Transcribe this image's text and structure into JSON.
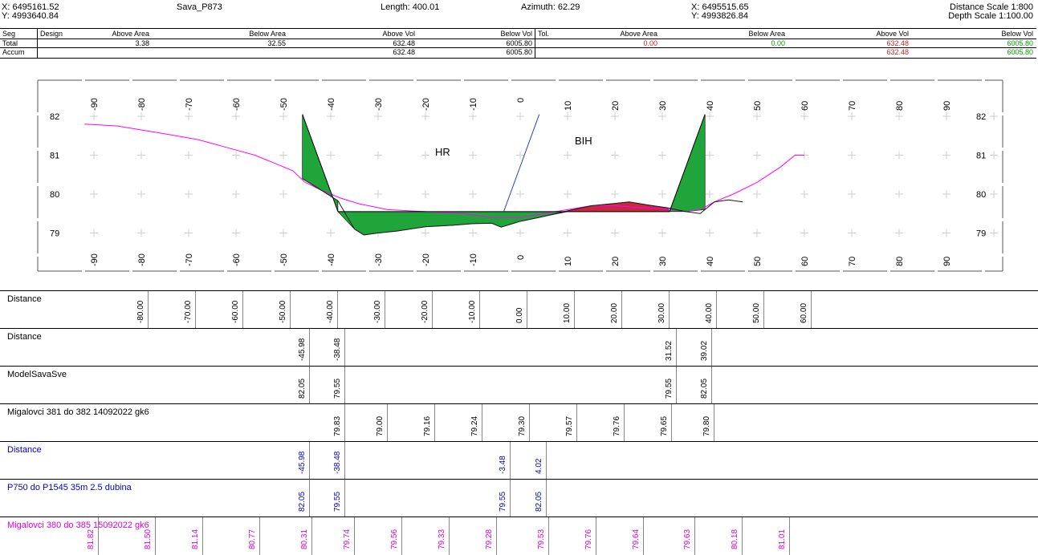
{
  "header": {
    "start_x": "X: 6495161.52",
    "start_y": "Y: 4993640.84",
    "title": "Sava_P873",
    "length": "Length: 400.01",
    "azimuth": "Azimuth: 62.29",
    "end_x": "X: 6495515.65",
    "end_y": "Y: 4993826.84",
    "distance_scale": "Distance Scale 1:800",
    "depth_scale": "Depth Scale 1:100.00"
  },
  "volume_table": {
    "columns": [
      "Seg",
      "Design",
      "Above Area",
      "Below Area",
      "Above Vol",
      "Below Vol",
      "Tol.",
      "Above Area",
      "Below Area",
      "Above Vol",
      "Below Vol"
    ],
    "rows": [
      {
        "label": "Total",
        "values": [
          "3.38",
          "32.55",
          "632.48",
          "6005.80",
          "0.00",
          "0.00",
          "632.48",
          "6005.80"
        ]
      },
      {
        "label": "Accum",
        "values": [
          "",
          "",
          "632.48",
          "6005.80",
          "",
          "",
          "632.48",
          "6005.80"
        ]
      }
    ]
  },
  "colors": {
    "cut_fill": "#1fa53a",
    "fill_red": "#c8283c",
    "terrain_line": "#ff00ff",
    "design_line": "#3040c0",
    "blue_text": "#0000c8",
    "magenta_text": "#e000e0",
    "green_text": "#00a000",
    "red_text": "#d02020"
  },
  "profile": {
    "x_ticks": [
      "-90",
      "-80",
      "-70",
      "-60",
      "-50",
      "-40",
      "-30",
      "-20",
      "-10",
      "0",
      "10",
      "20",
      "30",
      "40",
      "50",
      "60",
      "70",
      "80",
      "90"
    ],
    "y_ticks": [
      "82",
      "81",
      "80",
      "79"
    ],
    "label_hr": "HR",
    "label_bih": "BIH"
  },
  "bands": [
    {
      "title": "Distance",
      "color": "black",
      "values": [
        {
          "x": -80,
          "text": "-80.00"
        },
        {
          "x": -70,
          "text": "-70.00"
        },
        {
          "x": -60,
          "text": "-60.00"
        },
        {
          "x": -50,
          "text": "-50.00"
        },
        {
          "x": -40,
          "text": "-40.00"
        },
        {
          "x": -30,
          "text": "-30.00"
        },
        {
          "x": -20,
          "text": "-20.00"
        },
        {
          "x": -10,
          "text": "-10.00"
        },
        {
          "x": 0,
          "text": "0.00"
        },
        {
          "x": 10,
          "text": "10.00"
        },
        {
          "x": 20,
          "text": "20.00"
        },
        {
          "x": 30,
          "text": "30.00"
        },
        {
          "x": 40,
          "text": "40.00"
        },
        {
          "x": 50,
          "text": "50.00"
        },
        {
          "x": 60,
          "text": "60.00"
        }
      ]
    },
    {
      "title": "Distance",
      "color": "black",
      "values": [
        {
          "x": -45.98,
          "text": "-45.98"
        },
        {
          "x": -38.48,
          "text": "-38.48"
        },
        {
          "x": 31.52,
          "text": "31.52"
        },
        {
          "x": 39.02,
          "text": "39.02"
        }
      ]
    },
    {
      "title": "ModelSavaSve",
      "color": "black",
      "values": [
        {
          "x": -45.98,
          "text": "82.05"
        },
        {
          "x": -38.48,
          "text": "79.55"
        },
        {
          "x": 31.52,
          "text": "79.55"
        },
        {
          "x": 39.02,
          "text": "82.05"
        }
      ]
    },
    {
      "title": "Migalovci 381 do 382 14092022 gk6",
      "color": "black",
      "values": [
        {
          "x": -38.5,
          "text": "79.83"
        },
        {
          "x": -29.5,
          "text": "79.00"
        },
        {
          "x": -19.5,
          "text": "79.16"
        },
        {
          "x": -9.5,
          "text": "79.24"
        },
        {
          "x": 0.5,
          "text": "79.30"
        },
        {
          "x": 10.5,
          "text": "79.57"
        },
        {
          "x": 20.5,
          "text": "79.76"
        },
        {
          "x": 30.5,
          "text": "79.65"
        },
        {
          "x": 39.5,
          "text": "79.80"
        }
      ]
    },
    {
      "title": "Distance",
      "color": "blue",
      "values": [
        {
          "x": -45.98,
          "text": "-45.98"
        },
        {
          "x": -38.48,
          "text": "-38.48"
        },
        {
          "x": -3.48,
          "text": "-3.48"
        },
        {
          "x": 4.02,
          "text": "4.02"
        }
      ]
    },
    {
      "title": "P750 do P1545 35m 2.5 dubina",
      "color": "blue",
      "values": [
        {
          "x": -45.98,
          "text": "82.05"
        },
        {
          "x": -38.48,
          "text": "79.55"
        },
        {
          "x": -3.48,
          "text": "79.55"
        },
        {
          "x": 4.02,
          "text": "82.05"
        }
      ]
    },
    {
      "title": "Migalovci 380 do 385 15092022 gk6",
      "color": "magenta",
      "values": [
        {
          "x": -90.5,
          "text": "81.82"
        },
        {
          "x": -78.5,
          "text": "81.50"
        },
        {
          "x": -68.5,
          "text": "81.14"
        },
        {
          "x": -56.5,
          "text": "80.77"
        },
        {
          "x": -45.5,
          "text": "80.31"
        },
        {
          "x": -36.5,
          "text": "79.74"
        },
        {
          "x": -26.5,
          "text": "79.56"
        },
        {
          "x": -16.5,
          "text": "79.33"
        },
        {
          "x": -6.5,
          "text": "79.28"
        },
        {
          "x": 4.5,
          "text": "79.53"
        },
        {
          "x": 14.5,
          "text": "79.76"
        },
        {
          "x": 24.5,
          "text": "79.64"
        },
        {
          "x": 35.5,
          "text": "79.63"
        },
        {
          "x": 45.5,
          "text": "80.18"
        },
        {
          "x": 55.5,
          "text": "81.01"
        }
      ]
    }
  ],
  "chart_data": {
    "type": "line",
    "title": "Sava_P873",
    "xlim": [
      -100,
      100
    ],
    "ylim": [
      78.5,
      82.5
    ],
    "x_ticks": [
      -90,
      -80,
      -70,
      -60,
      -50,
      -40,
      -30,
      -20,
      -10,
      0,
      10,
      20,
      30,
      40,
      50,
      60,
      70,
      80,
      90
    ],
    "y_ticks": [
      79,
      80,
      81,
      82
    ],
    "series": [
      {
        "name": "Migalovci 380 do 385 15092022 gk6",
        "x": [
          -92,
          -85,
          -80,
          -75,
          -68,
          -62,
          -56,
          -52,
          -48,
          -45.5,
          -42,
          -38,
          -34,
          -28,
          -20,
          -12,
          -6,
          0,
          5,
          10,
          15,
          20,
          26,
          31,
          35,
          38,
          41,
          45,
          50,
          55,
          58,
          60
        ],
        "y": [
          81.8,
          81.75,
          81.65,
          81.55,
          81.4,
          81.2,
          81.0,
          80.8,
          80.6,
          80.31,
          80.1,
          79.9,
          79.75,
          79.6,
          79.55,
          79.5,
          79.4,
          79.4,
          79.5,
          79.6,
          79.7,
          79.7,
          79.65,
          79.62,
          79.55,
          79.6,
          79.8,
          80.0,
          80.3,
          80.7,
          81.0,
          81.0
        ]
      },
      {
        "name": "Migalovci 381 do 382 14092022 gk6",
        "x": [
          -46,
          -42,
          -38.5,
          -35,
          -33,
          -30,
          -26,
          -20,
          -14,
          -10,
          -6,
          -4,
          0,
          4,
          10,
          15,
          20,
          23,
          27,
          31,
          35,
          38,
          41,
          44,
          47
        ],
        "y": [
          80.4,
          80.1,
          79.83,
          79.1,
          78.95,
          79.0,
          79.05,
          79.16,
          79.2,
          79.24,
          79.25,
          79.15,
          79.3,
          79.4,
          79.57,
          79.7,
          79.76,
          79.8,
          79.72,
          79.65,
          79.55,
          79.5,
          79.8,
          79.85,
          79.8
        ]
      },
      {
        "name": "ModelSavaSve",
        "x": [
          -45.98,
          -38.48,
          31.52,
          39.02
        ],
        "y": [
          82.05,
          79.55,
          79.55,
          82.05
        ]
      },
      {
        "name": "P750 do P1545 35m 2.5 dubina",
        "x": [
          -45.98,
          -38.48,
          -3.48,
          4.02
        ],
        "y": [
          82.05,
          79.55,
          79.55,
          82.05
        ]
      }
    ],
    "annotations": [
      "HR",
      "BIH"
    ]
  }
}
